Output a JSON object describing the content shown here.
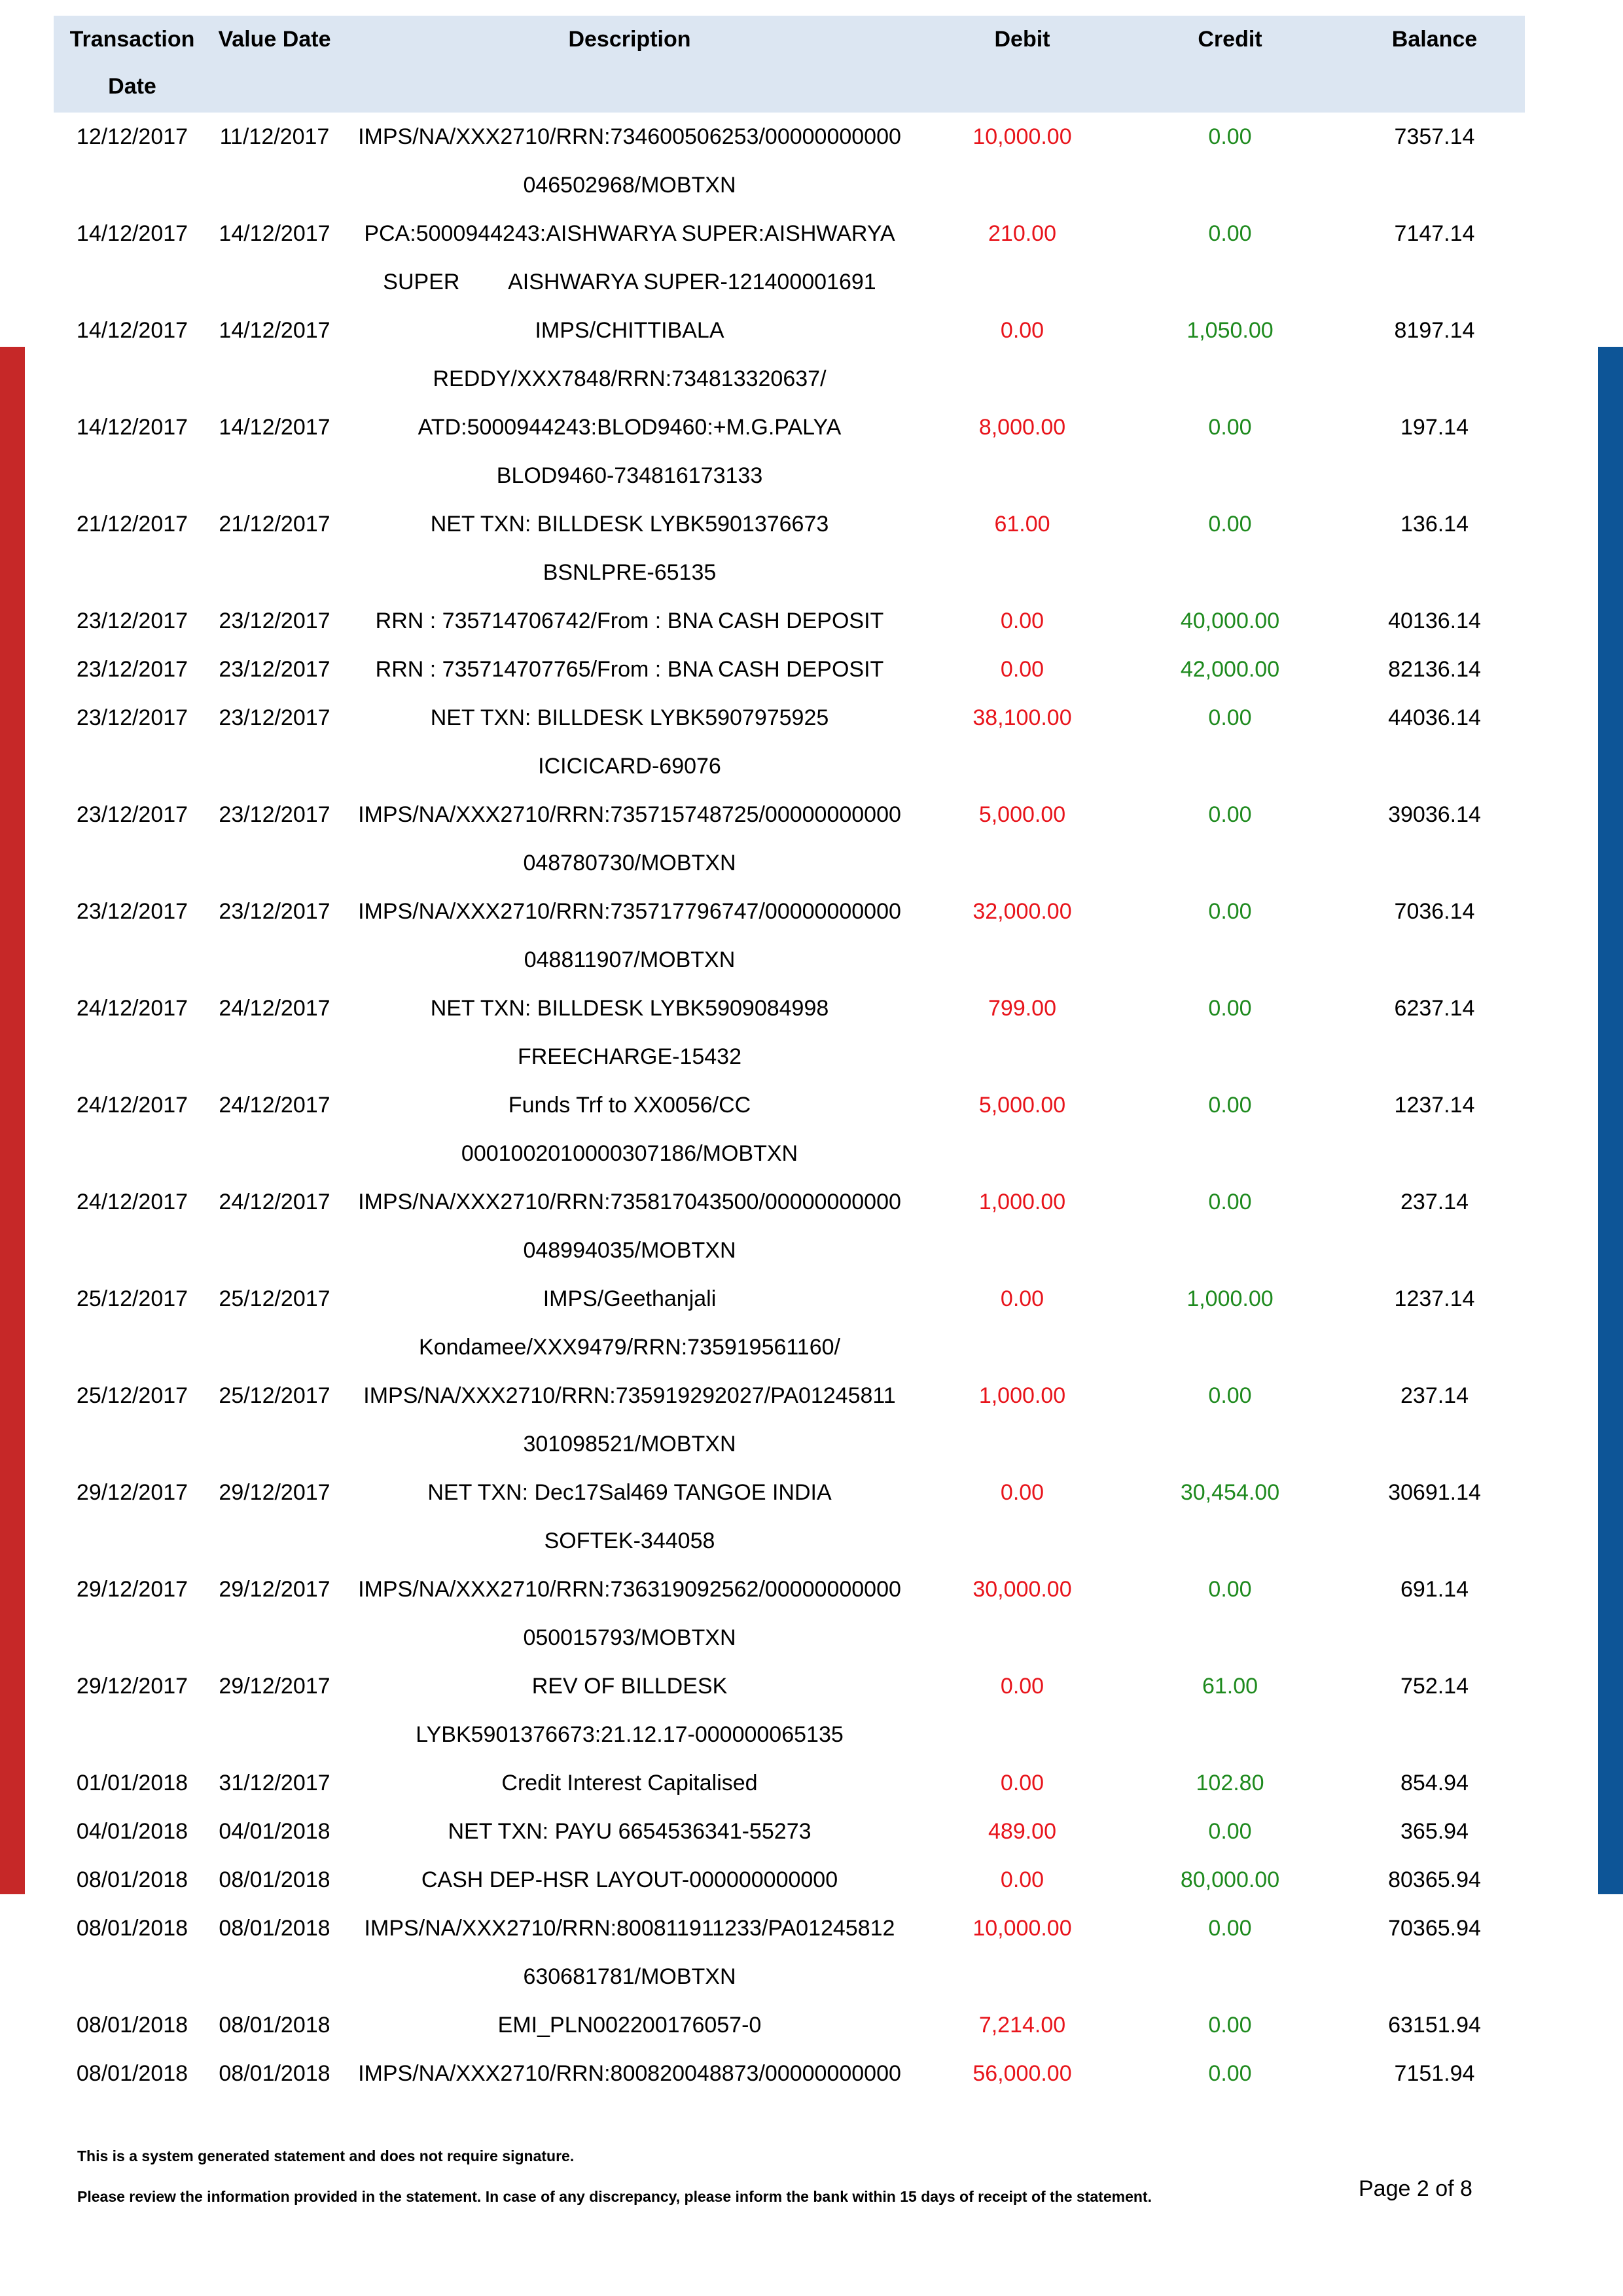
{
  "headers": {
    "transaction_date": "Transaction Date",
    "value_date": "Value Date",
    "description": "Description",
    "debit": "Debit",
    "credit": "Credit",
    "balance": "Balance"
  },
  "transactions": [
    {
      "tdate": "12/12/2017",
      "vdate": "11/12/2017",
      "desc": [
        "IMPS/NA/XXX2710/RRN:734600506253/00000000000",
        "046502968/MOBTXN"
      ],
      "debit": "10,000.00",
      "credit": "0.00",
      "balance": "7357.14"
    },
    {
      "tdate": "14/12/2017",
      "vdate": "14/12/2017",
      "desc": [
        "PCA:5000944243:AISHWARYA SUPER:AISHWARYA",
        "SUPER        AISHWARYA SUPER-121400001691"
      ],
      "debit": "210.00",
      "credit": "0.00",
      "balance": "7147.14"
    },
    {
      "tdate": "14/12/2017",
      "vdate": "14/12/2017",
      "desc": [
        "IMPS/CHITTIBALA",
        "REDDY/XXX7848/RRN:734813320637/"
      ],
      "debit": "0.00",
      "credit": "1,050.00",
      "balance": "8197.14"
    },
    {
      "tdate": "14/12/2017",
      "vdate": "14/12/2017",
      "desc": [
        "ATD:5000944243:BLOD9460:+M.G.PALYA",
        "BLOD9460-734816173133"
      ],
      "debit": "8,000.00",
      "credit": "0.00",
      "balance": "197.14"
    },
    {
      "tdate": "21/12/2017",
      "vdate": "21/12/2017",
      "desc": [
        "NET TXN: BILLDESK LYBK5901376673",
        "BSNLPRE-65135"
      ],
      "debit": "61.00",
      "credit": "0.00",
      "balance": "136.14"
    },
    {
      "tdate": "23/12/2017",
      "vdate": "23/12/2017",
      "desc": [
        "RRN : 735714706742/From : BNA CASH DEPOSIT"
      ],
      "debit": "0.00",
      "credit": "40,000.00",
      "balance": "40136.14"
    },
    {
      "tdate": "23/12/2017",
      "vdate": "23/12/2017",
      "desc": [
        "RRN : 735714707765/From : BNA CASH DEPOSIT"
      ],
      "debit": "0.00",
      "credit": "42,000.00",
      "balance": "82136.14"
    },
    {
      "tdate": "23/12/2017",
      "vdate": "23/12/2017",
      "desc": [
        "NET TXN: BILLDESK LYBK5907975925",
        "ICICICARD-69076"
      ],
      "debit": "38,100.00",
      "credit": "0.00",
      "balance": "44036.14"
    },
    {
      "tdate": "23/12/2017",
      "vdate": "23/12/2017",
      "desc": [
        "IMPS/NA/XXX2710/RRN:735715748725/00000000000",
        "048780730/MOBTXN"
      ],
      "debit": "5,000.00",
      "credit": "0.00",
      "balance": "39036.14"
    },
    {
      "tdate": "23/12/2017",
      "vdate": "23/12/2017",
      "desc": [
        "IMPS/NA/XXX2710/RRN:735717796747/00000000000",
        "048811907/MOBTXN"
      ],
      "debit": "32,000.00",
      "credit": "0.00",
      "balance": "7036.14"
    },
    {
      "tdate": "24/12/2017",
      "vdate": "24/12/2017",
      "desc": [
        "NET TXN: BILLDESK LYBK5909084998",
        "FREECHARGE-15432"
      ],
      "debit": "799.00",
      "credit": "0.00",
      "balance": "6237.14"
    },
    {
      "tdate": "24/12/2017",
      "vdate": "24/12/2017",
      "desc": [
        "Funds Trf to XX0056/CC",
        "0001002010000307186/MOBTXN"
      ],
      "debit": "5,000.00",
      "credit": "0.00",
      "balance": "1237.14"
    },
    {
      "tdate": "24/12/2017",
      "vdate": "24/12/2017",
      "desc": [
        "IMPS/NA/XXX2710/RRN:735817043500/00000000000",
        "048994035/MOBTXN"
      ],
      "debit": "1,000.00",
      "credit": "0.00",
      "balance": "237.14"
    },
    {
      "tdate": "25/12/2017",
      "vdate": "25/12/2017",
      "desc": [
        "IMPS/Geethanjali",
        "Kondamee/XXX9479/RRN:735919561160/"
      ],
      "debit": "0.00",
      "credit": "1,000.00",
      "balance": "1237.14"
    },
    {
      "tdate": "25/12/2017",
      "vdate": "25/12/2017",
      "desc": [
        "IMPS/NA/XXX2710/RRN:735919292027/PA01245811",
        "301098521/MOBTXN"
      ],
      "debit": "1,000.00",
      "credit": "0.00",
      "balance": "237.14"
    },
    {
      "tdate": "29/12/2017",
      "vdate": "29/12/2017",
      "desc": [
        "NET TXN: Dec17Sal469 TANGOE INDIA",
        "SOFTEK-344058"
      ],
      "debit": "0.00",
      "credit": "30,454.00",
      "balance": "30691.14"
    },
    {
      "tdate": "29/12/2017",
      "vdate": "29/12/2017",
      "desc": [
        "IMPS/NA/XXX2710/RRN:736319092562/00000000000",
        "050015793/MOBTXN"
      ],
      "debit": "30,000.00",
      "credit": "0.00",
      "balance": "691.14"
    },
    {
      "tdate": "29/12/2017",
      "vdate": "29/12/2017",
      "desc": [
        "REV OF BILLDESK",
        "LYBK5901376673:21.12.17-000000065135"
      ],
      "debit": "0.00",
      "credit": "61.00",
      "balance": "752.14"
    },
    {
      "tdate": "01/01/2018",
      "vdate": "31/12/2017",
      "desc": [
        "Credit Interest Capitalised"
      ],
      "debit": "0.00",
      "credit": "102.80",
      "balance": "854.94"
    },
    {
      "tdate": "04/01/2018",
      "vdate": "04/01/2018",
      "desc": [
        "NET TXN: PAYU 6654536341-55273"
      ],
      "debit": "489.00",
      "credit": "0.00",
      "balance": "365.94"
    },
    {
      "tdate": "08/01/2018",
      "vdate": "08/01/2018",
      "desc": [
        "CASH DEP-HSR LAYOUT-000000000000"
      ],
      "debit": "0.00",
      "credit": "80,000.00",
      "balance": "80365.94"
    },
    {
      "tdate": "08/01/2018",
      "vdate": "08/01/2018",
      "desc": [
        "IMPS/NA/XXX2710/RRN:800811911233/PA01245812",
        "630681781/MOBTXN"
      ],
      "debit": "10,000.00",
      "credit": "0.00",
      "balance": "70365.94"
    },
    {
      "tdate": "08/01/2018",
      "vdate": "08/01/2018",
      "desc": [
        "EMI_PLN002200176057-0"
      ],
      "debit": "7,214.00",
      "credit": "0.00",
      "balance": "63151.94"
    },
    {
      "tdate": "08/01/2018",
      "vdate": "08/01/2018",
      "desc": [
        "IMPS/NA/XXX2710/RRN:800820048873/00000000000"
      ],
      "debit": "56,000.00",
      "credit": "0.00",
      "balance": "7151.94"
    }
  ],
  "footer": {
    "note_signature": "This is a system generated statement and does not require signature.",
    "note_review": "Please review the information provided in the statement. In case of any discrepancy, please inform the bank within 15 days of receipt of the statement.",
    "page": "Page 2 of 8"
  },
  "colors": {
    "header_bg": "#dce6f2",
    "debit": "#e8141b",
    "credit": "#1e8a1e",
    "left_bar": "#c62828",
    "right_bar": "#0d5597"
  }
}
